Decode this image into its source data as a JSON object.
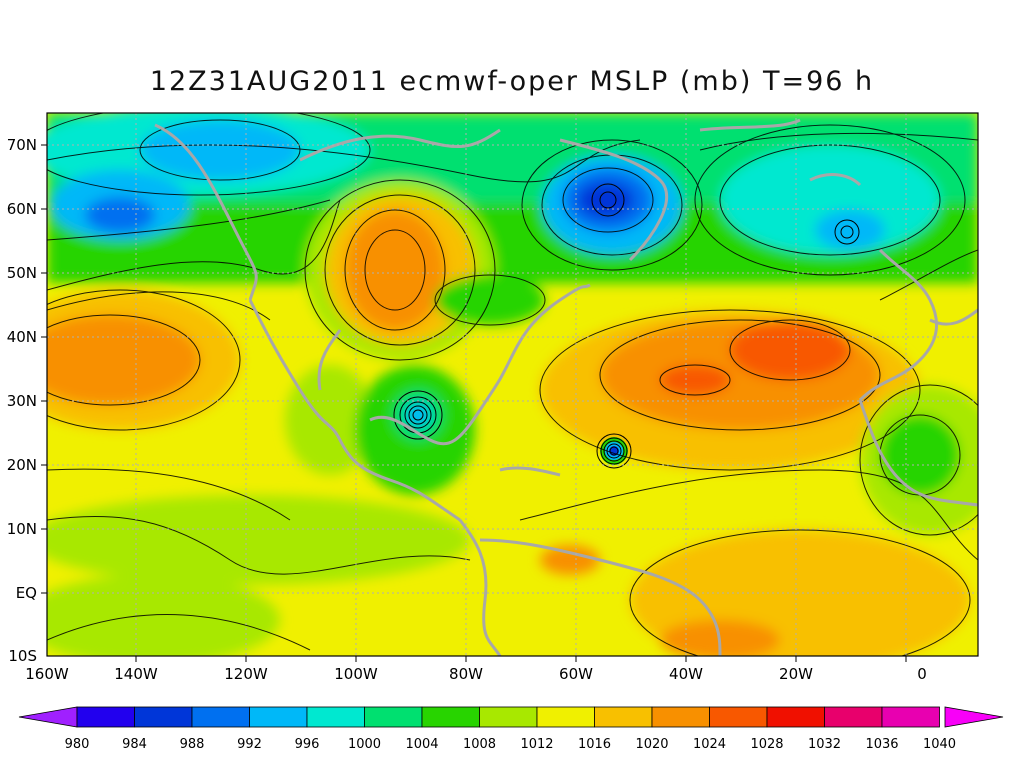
{
  "title": "12Z31AUG2011 ecmwf-oper MSLP (mb) T=96 h",
  "map": {
    "lon_labels": [
      "160W",
      "140W",
      "120W",
      "100W",
      "80W",
      "60W",
      "40W",
      "20W",
      "0"
    ],
    "lat_labels": [
      "70N",
      "60N",
      "50N",
      "40N",
      "30N",
      "20N",
      "10N",
      "EQ",
      "10S"
    ],
    "lon_range": [
      -160,
      10
    ],
    "lat_range": [
      -10,
      75
    ],
    "land_outline_color": "#a8a8a8"
  },
  "colorbar": {
    "labels": [
      "980",
      "984",
      "988",
      "992",
      "996",
      "1000",
      "1004",
      "1008",
      "1012",
      "1016",
      "1020",
      "1024",
      "1028",
      "1032",
      "1036",
      "1040"
    ],
    "colors": [
      "#a020ff",
      "#2200ee",
      "#0036d8",
      "#0070f0",
      "#00b8f8",
      "#00e8d0",
      "#00e070",
      "#28d400",
      "#a8e800",
      "#f0f000",
      "#f8c000",
      "#f89000",
      "#f85800",
      "#f01000",
      "#e8006c",
      "#e800b0",
      "#f800f8"
    ]
  }
}
